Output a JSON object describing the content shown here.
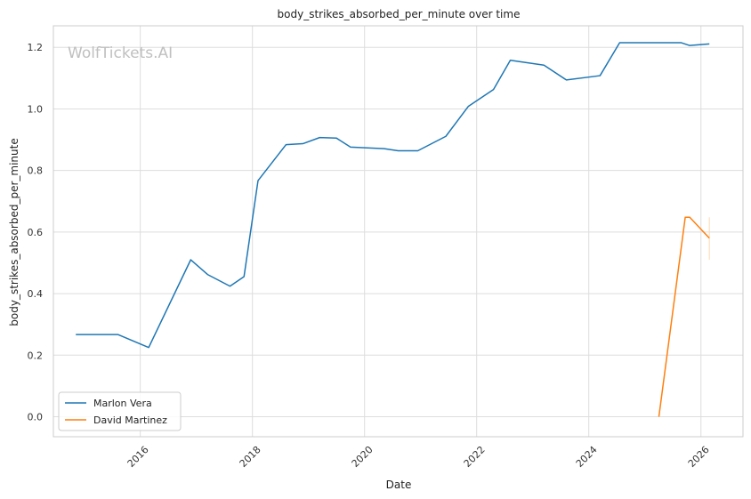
{
  "chart_data": {
    "type": "line",
    "title": "body_strikes_absorbed_per_minute over time",
    "xlabel": "Date",
    "ylabel": "body_strikes_absorbed_per_minute",
    "watermark": "WolfTickets.AI",
    "xlim": [
      2014.45,
      2026.75
    ],
    "ylim": [
      -0.065,
      1.27
    ],
    "x_ticks": [
      2016,
      2018,
      2020,
      2022,
      2024,
      2026
    ],
    "x_tick_labels": [
      "2016",
      "2018",
      "2020",
      "2022",
      "2024",
      "2026"
    ],
    "y_ticks": [
      0.0,
      0.2,
      0.4,
      0.6,
      0.8,
      1.0,
      1.2
    ],
    "y_tick_labels": [
      "0.0",
      "0.2",
      "0.4",
      "0.6",
      "0.8",
      "1.0",
      "1.2"
    ],
    "grid": true,
    "legend_position": "lower-left",
    "series": [
      {
        "name": "Marlon Vera",
        "color": "#1f77b4",
        "x": [
          2014.85,
          2015.6,
          2016.15,
          2016.9,
          2017.2,
          2017.6,
          2017.85,
          2018.1,
          2018.6,
          2018.9,
          2019.2,
          2019.5,
          2019.75,
          2020.35,
          2020.6,
          2020.95,
          2021.45,
          2021.85,
          2022.3,
          2022.6,
          2023.2,
          2023.6,
          2024.2,
          2024.55,
          2025.05,
          2025.65,
          2025.8,
          2026.15
        ],
        "y": [
          0.267,
          0.267,
          0.225,
          0.51,
          0.462,
          0.424,
          0.455,
          0.767,
          0.884,
          0.887,
          0.907,
          0.905,
          0.876,
          0.871,
          0.864,
          0.864,
          0.911,
          1.008,
          1.063,
          1.158,
          1.142,
          1.094,
          1.108,
          1.215,
          1.215,
          1.215,
          1.206,
          1.211
        ]
      },
      {
        "name": "David Martinez",
        "color": "#ff7f0e",
        "x": [
          2025.25,
          2025.72,
          2025.8,
          2026.15
        ],
        "y": [
          0.0,
          0.648,
          0.648,
          0.58
        ]
      }
    ],
    "error_bar": {
      "x": 2026.15,
      "y_low": 0.51,
      "y_high": 0.648,
      "color": "#ffd9b0"
    }
  }
}
